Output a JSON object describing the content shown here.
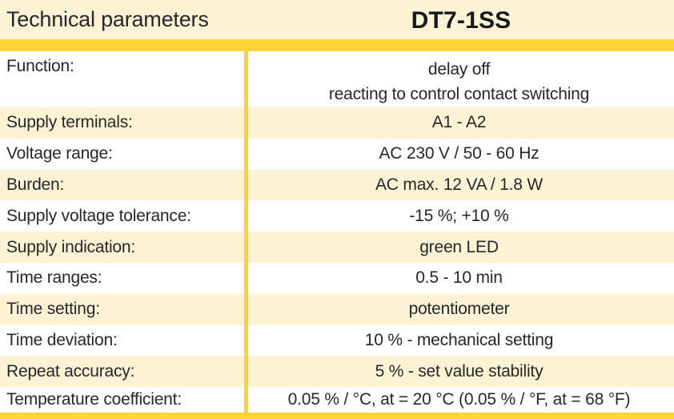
{
  "header": {
    "title": "Technical parameters",
    "model": "DT7-1SS"
  },
  "colors": {
    "gold": "#FBD531",
    "pale": "#FBF3D4",
    "ink": "#26272B"
  },
  "table": {
    "rows": [
      {
        "label": "Function:",
        "value": "delay off",
        "value_line2": "reacting to control contact switching"
      },
      {
        "label": "Supply terminals:",
        "value": "A1 - A2"
      },
      {
        "label": "Voltage range:",
        "value": "AC 230 V / 50 - 60 Hz"
      },
      {
        "label": "Burden:",
        "value": "AC max. 12 VA / 1.8 W"
      },
      {
        "label": "Supply voltage tolerance:",
        "value": "-15 %; +10 %"
      },
      {
        "label": "Supply indication:",
        "value": "green LED"
      },
      {
        "label": "Time ranges:",
        "value": "0.5 - 10 min"
      },
      {
        "label": "Time setting:",
        "value": "potentiometer"
      },
      {
        "label": "Time deviation:",
        "value": "10 % - mechanical setting"
      },
      {
        "label": "Repeat accuracy:",
        "value": "5 % - set value stability"
      },
      {
        "label": "Temperature coefficient:",
        "value": "0.05 % / °C, at = 20 °C (0.05 % / °F, at = 68 °F)"
      }
    ]
  }
}
